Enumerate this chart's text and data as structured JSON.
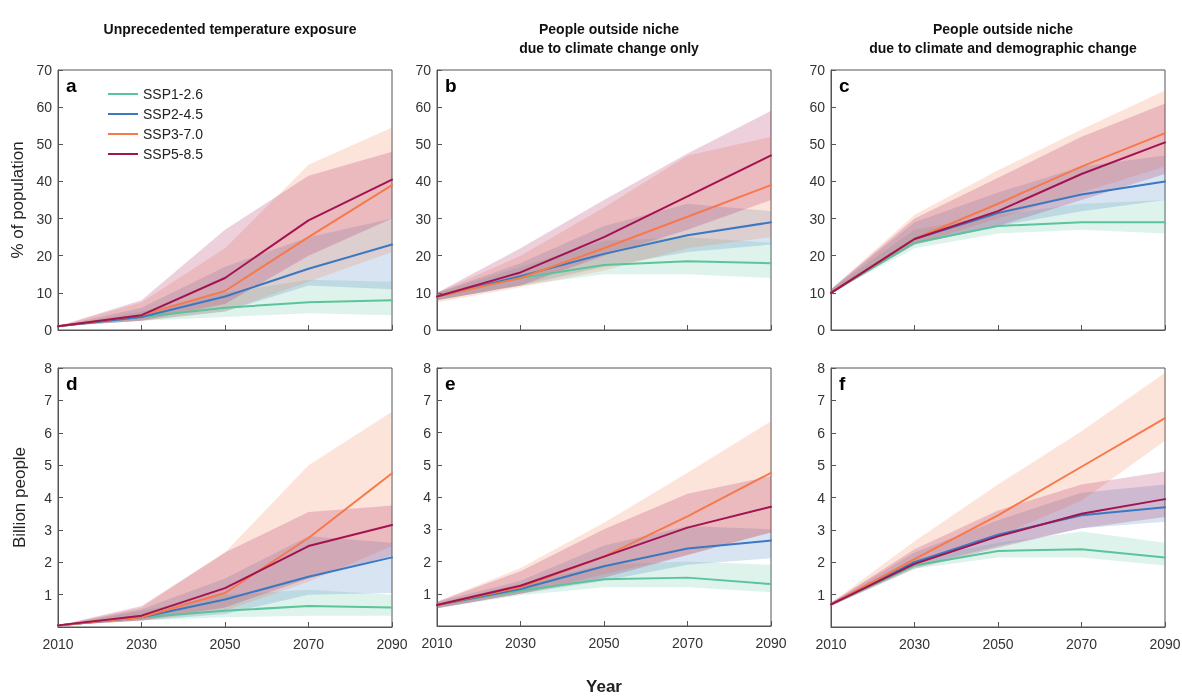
{
  "chart_data": [
    {
      "type": "line",
      "title": "Unprecedented temperature exposure",
      "ylabel": "% of population",
      "annotations": [
        "a"
      ],
      "x": [
        2010,
        2030,
        2050,
        2070,
        2090
      ],
      "xlim": [
        2010,
        2090
      ],
      "xticks": [
        2010,
        2030,
        2050,
        2070,
        2090
      ],
      "ylim": [
        0,
        70
      ],
      "yticks": [
        0,
        10,
        20,
        30,
        40,
        50,
        60,
        70
      ],
      "tick_labels": "y",
      "grid": false,
      "legend": "top left",
      "series": [
        {
          "name": "SSP1-2.6",
          "color": "#5cc49a",
          "values": [
            1,
            3.5,
            6,
            7.5,
            8
          ],
          "lower": [
            1,
            2.5,
            3.5,
            4.5,
            4
          ],
          "upper": [
            1,
            5,
            10,
            13.5,
            13
          ]
        },
        {
          "name": "SSP2-4.5",
          "color": "#3a78c0",
          "values": [
            1,
            3.5,
            9,
            16.5,
            23
          ],
          "lower": [
            1,
            2.5,
            5,
            12,
            11
          ],
          "upper": [
            1,
            6,
            17,
            25,
            30
          ]
        },
        {
          "name": "SSP3-7.0",
          "color": "#f7794a",
          "values": [
            1,
            4,
            10.5,
            25,
            39
          ],
          "lower": [
            1,
            2.5,
            5,
            13,
            21
          ],
          "upper": [
            1,
            7.5,
            22,
            44.5,
            54.5
          ]
        },
        {
          "name": "SSP5-8.5",
          "color": "#a3134f",
          "values": [
            1,
            4,
            14,
            29.5,
            40.5
          ],
          "lower": [
            1,
            2.5,
            7,
            20,
            30
          ],
          "upper": [
            1,
            8,
            27,
            41.5,
            48
          ]
        }
      ]
    },
    {
      "type": "line",
      "title": "People outside niche\ndue to climate change only",
      "annotations": [
        "b"
      ],
      "x": [
        2010,
        2030,
        2050,
        2070,
        2090
      ],
      "xlim": [
        2010,
        2090
      ],
      "xticks": [
        2010,
        2030,
        2050,
        2070,
        2090
      ],
      "ylim": [
        0,
        70
      ],
      "yticks": [
        0,
        10,
        20,
        30,
        40,
        50,
        60,
        70
      ],
      "tick_labels": "y",
      "grid": false,
      "series": [
        {
          "color": "#5cc49a",
          "values": [
            9,
            14,
            17.5,
            18.5,
            18
          ],
          "lower": [
            8,
            12,
            15,
            15,
            14
          ],
          "upper": [
            10,
            17,
            24,
            25,
            23.5
          ]
        },
        {
          "color": "#3a78c0",
          "values": [
            9,
            14.5,
            20.5,
            25.5,
            29
          ],
          "lower": [
            8,
            12,
            17,
            21,
            23
          ],
          "upper": [
            10,
            18,
            28,
            34,
            32
          ]
        },
        {
          "color": "#f7794a",
          "values": [
            9,
            14,
            22,
            30.5,
            39
          ],
          "lower": [
            7.5,
            11.5,
            16,
            22,
            25
          ],
          "upper": [
            10,
            20,
            33,
            47,
            52
          ]
        },
        {
          "color": "#a3134f",
          "values": [
            9,
            15.5,
            25,
            36,
            47
          ],
          "lower": [
            8,
            12,
            20,
            27,
            35
          ],
          "upper": [
            10,
            22,
            35,
            47.5,
            59
          ]
        }
      ]
    },
    {
      "type": "line",
      "title": "People outside niche\ndue to climate and demographic change",
      "annotations": [
        "c"
      ],
      "x": [
        2010,
        2030,
        2050,
        2070,
        2090
      ],
      "xlim": [
        2010,
        2090
      ],
      "xticks": [
        2010,
        2030,
        2050,
        2070,
        2090
      ],
      "ylim": [
        0,
        70
      ],
      "yticks": [
        0,
        10,
        20,
        30,
        40,
        50,
        60,
        70
      ],
      "tick_labels": "y",
      "grid": false,
      "series": [
        {
          "color": "#5cc49a",
          "values": [
            10,
            23.5,
            28,
            29,
            29
          ],
          "lower": [
            10,
            22,
            26,
            27,
            26
          ],
          "upper": [
            11,
            27,
            31,
            34,
            35
          ]
        },
        {
          "color": "#3a78c0",
          "values": [
            10,
            24.5,
            31.5,
            36.5,
            40
          ],
          "lower": [
            10,
            23,
            28,
            32,
            35
          ],
          "upper": [
            11,
            29,
            37,
            44,
            47
          ]
        },
        {
          "color": "#f7794a",
          "values": [
            10,
            24.5,
            34,
            44,
            53
          ],
          "lower": [
            10,
            23,
            30,
            37,
            44
          ],
          "upper": [
            11,
            31,
            43,
            54,
            64.5
          ]
        },
        {
          "color": "#a3134f",
          "values": [
            10,
            24.5,
            32,
            42,
            50.5
          ],
          "lower": [
            10,
            23,
            28,
            35,
            42
          ],
          "upper": [
            11,
            30,
            41,
            52,
            61
          ]
        }
      ]
    },
    {
      "type": "line",
      "ylabel": "Billion people",
      "annotations": [
        "d"
      ],
      "x": [
        2010,
        2030,
        2050,
        2070,
        2090
      ],
      "xlim": [
        2010,
        2090
      ],
      "xticks": [
        2010,
        2030,
        2050,
        2070,
        2090
      ],
      "ylim": [
        0,
        8
      ],
      "yticks": [
        1,
        2,
        3,
        4,
        5,
        6,
        7,
        8
      ],
      "grid": false,
      "series": [
        {
          "color": "#5cc49a",
          "values": [
            0.05,
            0.3,
            0.5,
            0.65,
            0.6
          ],
          "lower": [
            0.05,
            0.2,
            0.3,
            0.35,
            0.35
          ],
          "upper": [
            0.05,
            0.5,
            1,
            1.15,
            1
          ]
        },
        {
          "color": "#3a78c0",
          "values": [
            0.05,
            0.3,
            0.85,
            1.55,
            2.15
          ],
          "lower": [
            0.05,
            0.2,
            0.4,
            1,
            1.05
          ],
          "upper": [
            0.05,
            0.55,
            1.5,
            2.8,
            2.6
          ]
        },
        {
          "color": "#f7794a",
          "values": [
            0.05,
            0.3,
            1.05,
            2.75,
            4.75
          ],
          "lower": [
            0.05,
            0.2,
            0.5,
            1.4,
            2.5
          ],
          "upper": [
            0.05,
            0.6,
            2.3,
            5,
            6.65
          ]
        },
        {
          "color": "#a3134f",
          "values": [
            0.05,
            0.35,
            1.2,
            2.5,
            3.15
          ],
          "lower": [
            0.05,
            0.2,
            0.6,
            1.5,
            2.2
          ],
          "upper": [
            0.05,
            0.65,
            2.3,
            3.55,
            3.75
          ]
        }
      ]
    },
    {
      "type": "line",
      "xlabel": "Year",
      "annotations": [
        "e"
      ],
      "x": [
        2010,
        2030,
        2050,
        2070,
        2090
      ],
      "xlim": [
        2010,
        2090
      ],
      "xticks": [
        2010,
        2030,
        2050,
        2070,
        2090
      ],
      "ylim": [
        0,
        8
      ],
      "yticks": [
        1,
        2,
        3,
        4,
        5,
        6,
        7,
        8
      ],
      "grid": false,
      "series": [
        {
          "color": "#5cc49a",
          "values": [
            0.65,
            1.1,
            1.45,
            1.5,
            1.3
          ],
          "lower": [
            0.55,
            0.95,
            1.2,
            1.2,
            1.05
          ],
          "upper": [
            0.7,
            1.3,
            1.9,
            2,
            1.9
          ]
        },
        {
          "color": "#3a78c0",
          "values": [
            0.65,
            1.15,
            1.85,
            2.4,
            2.65
          ],
          "lower": [
            0.55,
            1,
            1.4,
            1.9,
            2.1
          ],
          "upper": [
            0.75,
            1.4,
            2.5,
            3.1,
            3
          ]
        },
        {
          "color": "#f7794a",
          "values": [
            0.65,
            1.2,
            2.15,
            3.4,
            4.75
          ],
          "lower": [
            0.55,
            1,
            1.6,
            2.2,
            2.9
          ],
          "upper": [
            0.75,
            1.8,
            3.2,
            4.75,
            6.35
          ]
        },
        {
          "color": "#a3134f",
          "values": [
            0.65,
            1.25,
            2.15,
            3.05,
            3.7
          ],
          "lower": [
            0.55,
            1,
            1.5,
            2.2,
            2.9
          ],
          "upper": [
            0.75,
            1.7,
            3,
            4.1,
            4.65
          ]
        }
      ]
    },
    {
      "type": "line",
      "annotations": [
        "f"
      ],
      "x": [
        2010,
        2030,
        2050,
        2070,
        2090
      ],
      "xlim": [
        2010,
        2090
      ],
      "xticks": [
        2010,
        2030,
        2050,
        2070,
        2090
      ],
      "ylim": [
        0,
        8
      ],
      "yticks": [
        1,
        2,
        3,
        4,
        5,
        6,
        7,
        8
      ],
      "grid": false,
      "series": [
        {
          "color": "#5cc49a",
          "values": [
            0.7,
            1.9,
            2.35,
            2.4,
            2.15
          ],
          "lower": [
            0.65,
            1.8,
            2.15,
            2.15,
            1.9
          ],
          "upper": [
            0.75,
            2.1,
            2.6,
            2.95,
            2.6
          ]
        },
        {
          "color": "#3a78c0",
          "values": [
            0.7,
            2,
            2.85,
            3.45,
            3.7
          ],
          "lower": [
            0.65,
            1.85,
            2.5,
            3.05,
            3.25
          ],
          "upper": [
            0.75,
            2.3,
            3.3,
            4.15,
            4.4
          ]
        },
        {
          "color": "#f7794a",
          "values": [
            0.7,
            2.1,
            3.45,
            4.95,
            6.45
          ],
          "lower": [
            0.65,
            1.9,
            2.8,
            3.9,
            5.75
          ],
          "upper": [
            0.75,
            2.65,
            4.4,
            6.05,
            7.85
          ]
        },
        {
          "color": "#a3134f",
          "values": [
            0.7,
            1.95,
            2.8,
            3.5,
            3.95
          ],
          "lower": [
            0.65,
            1.8,
            2.45,
            3.05,
            3.4
          ],
          "upper": [
            0.75,
            2.4,
            3.6,
            4.4,
            4.8
          ]
        }
      ]
    }
  ]
}
